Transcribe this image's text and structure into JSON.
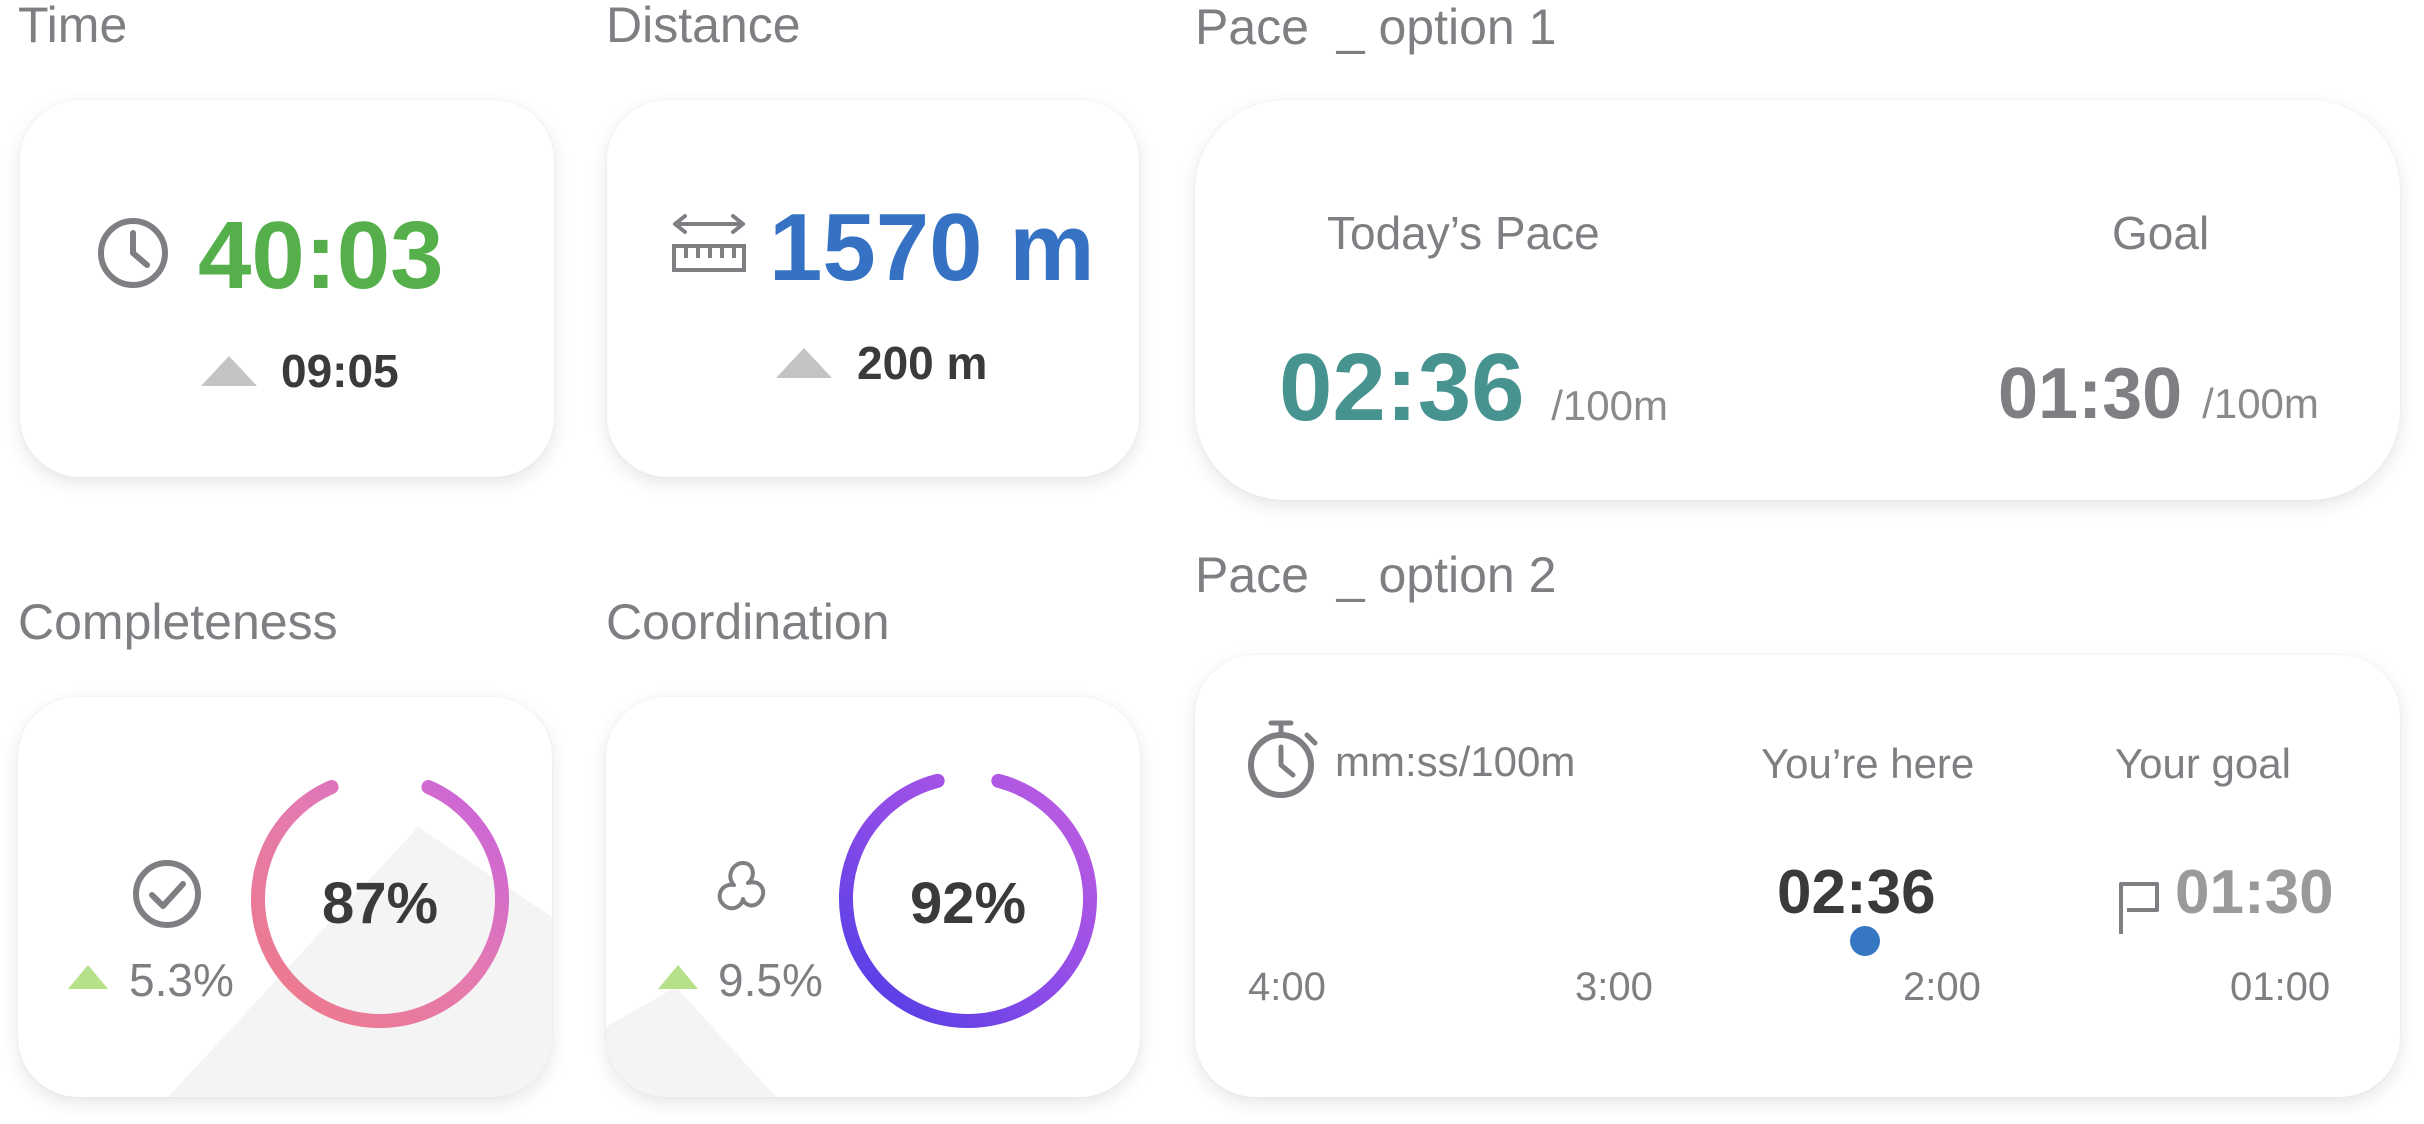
{
  "colors": {
    "time_green": "#55b04c",
    "distance_blue": "#3672c4",
    "pace_teal": "#47938f",
    "gray_text": "#7d7f82",
    "dark_text": "#3a3a3a"
  },
  "time": {
    "title": "Time",
    "icon": "clock-icon",
    "value": "40:03",
    "delta": "09:05"
  },
  "distance": {
    "title": "Distance",
    "icon": "ruler-icon",
    "value": "1570 m",
    "delta": "200 m"
  },
  "pace1": {
    "title": "Pace  _ option 1",
    "today_label": "Today’s Pace",
    "today_value": "02:36",
    "today_unit": "/100m",
    "goal_label": "Goal",
    "goal_value": "01:30",
    "goal_unit": "/100m"
  },
  "completeness": {
    "title": "Completeness",
    "icon": "check-circle-icon",
    "value": "87%",
    "percent": 87,
    "delta": "5.3%"
  },
  "coordination": {
    "title": "Coordination",
    "icon": "coordination-icon",
    "value": "92%",
    "percent": 92,
    "delta": "9.5%"
  },
  "pace2": {
    "title": "Pace  _ option 2",
    "icon": "stopwatch-icon",
    "unit": "mm:ss/100m",
    "here_label": "You’re here",
    "here_value": "02:36",
    "goal_label": "Your goal",
    "goal_value": "01:30",
    "flag_icon": "flag-icon",
    "ticks": [
      "4:00",
      "3:00",
      "2:00",
      "01:00"
    ]
  }
}
